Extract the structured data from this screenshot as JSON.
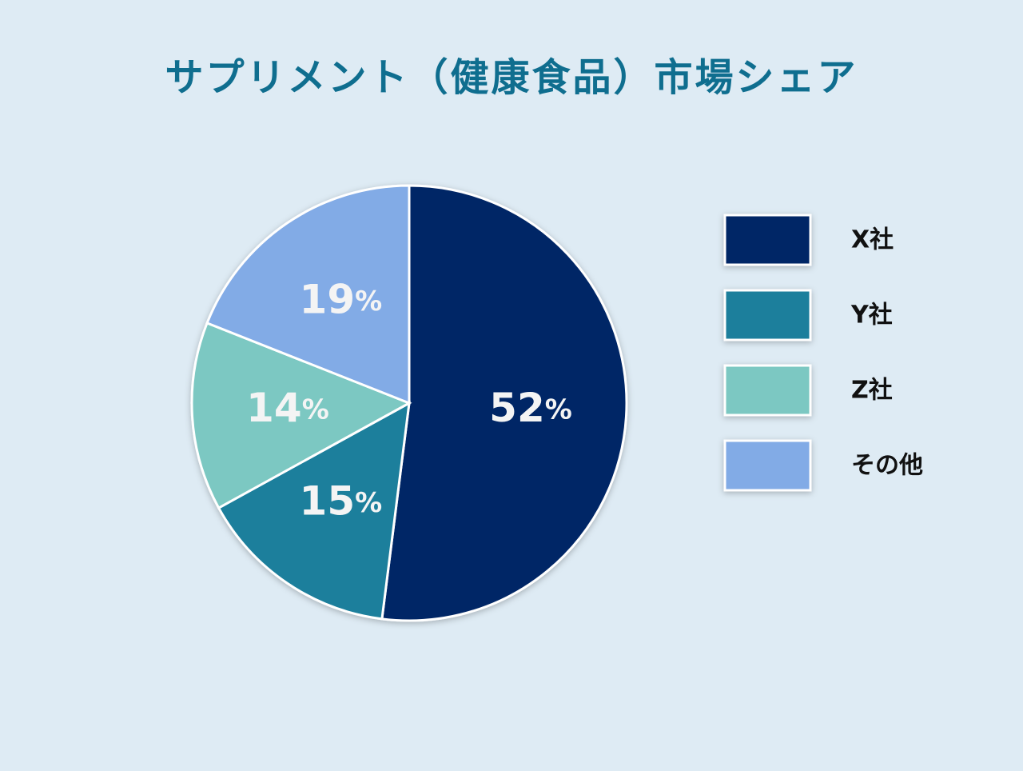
{
  "chart_data": {
    "type": "pie",
    "title": "サプリメント（健康食品）市場シェア",
    "categories": [
      "X社",
      "Y社",
      "Z社",
      "その他"
    ],
    "values": [
      52,
      15,
      14,
      19
    ],
    "value_labels": [
      "52%",
      "15%",
      "14%",
      "19%"
    ],
    "colors": [
      "#022766",
      "#1a7f9c",
      "#7cc8c2",
      "#82abe6"
    ]
  }
}
